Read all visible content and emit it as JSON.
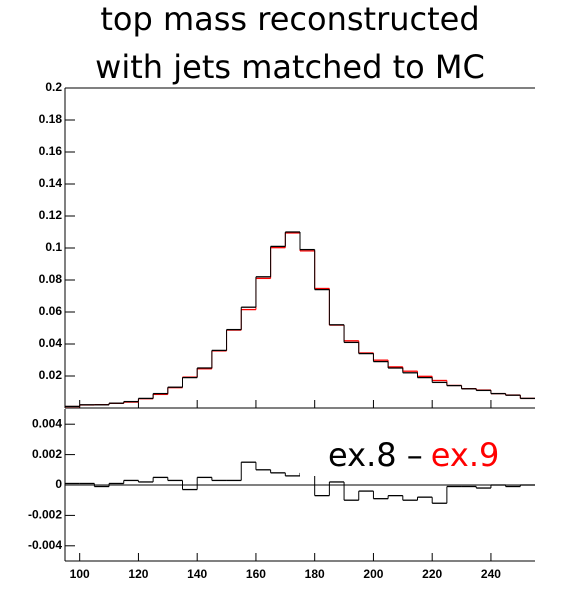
{
  "chart_data": [
    {
      "type": "histogram",
      "title": "top mass reconstructed",
      "subtitle": "with jets matched to MC",
      "bins": [
        95,
        100,
        105,
        110,
        115,
        120,
        125,
        130,
        135,
        140,
        145,
        150,
        155,
        160,
        165,
        170,
        175,
        180,
        185,
        190,
        195,
        200,
        205,
        210,
        215,
        220,
        225,
        230,
        235,
        240,
        245,
        250,
        255
      ],
      "series": [
        {
          "color": "#000000",
          "values": [
            0.001,
            0.002,
            0.002,
            0.003,
            0.004,
            0.006,
            0.009,
            0.013,
            0.019,
            0.025,
            0.036,
            0.049,
            0.063,
            0.082,
            0.101,
            0.11,
            0.099,
            0.074,
            0.052,
            0.041,
            0.034,
            0.029,
            0.025,
            0.022,
            0.019,
            0.016,
            0.014,
            0.012,
            0.011,
            0.009,
            0.008,
            0.006
          ]
        },
        {
          "color": "#ff0000",
          "values": [
            0.0009,
            0.0019,
            0.0021,
            0.0029,
            0.0037,
            0.0058,
            0.0085,
            0.0127,
            0.0193,
            0.0245,
            0.0357,
            0.0487,
            0.0615,
            0.081,
            0.1002,
            0.1094,
            0.0982,
            0.0747,
            0.0518,
            0.042,
            0.0344,
            0.0299,
            0.0257,
            0.023,
            0.0198,
            0.0172,
            0.0141,
            0.0121,
            0.0112,
            0.009,
            0.0081,
            0.006
          ]
        }
      ],
      "xlim": [
        95,
        255
      ],
      "xticks": [
        100,
        120,
        140,
        160,
        180,
        200,
        220,
        240
      ],
      "ylim": [
        0,
        0.2
      ],
      "yticks": [
        0.02,
        0.04,
        0.06,
        0.08,
        0.1,
        0.12,
        0.14,
        0.16,
        0.18,
        0.2
      ]
    },
    {
      "type": "histogram",
      "annotation": [
        "ex.8 –",
        "ex.9"
      ],
      "bins": [
        95,
        100,
        105,
        110,
        115,
        120,
        125,
        130,
        135,
        140,
        145,
        150,
        155,
        160,
        165,
        170,
        175,
        180,
        185,
        190,
        195,
        200,
        205,
        210,
        215,
        220,
        225,
        230,
        235,
        240,
        245,
        250,
        255
      ],
      "series": [
        {
          "color": "#000000",
          "values": [
            0.0001,
            0.0001,
            -0.0001,
            0.0001,
            0.0003,
            0.0002,
            0.0005,
            0.0003,
            -0.0003,
            0.0005,
            0.0003,
            0.0003,
            0.0015,
            0.001,
            0.0008,
            0.0006,
            0.0008,
            -0.0007,
            0.0002,
            -0.001,
            -0.0004,
            -0.0009,
            -0.0007,
            -0.001,
            -0.0008,
            -0.0012,
            -0.0001,
            -0.0001,
            -0.0002,
            0,
            -0.0001,
            0
          ]
        }
      ],
      "xlim": [
        95,
        255
      ],
      "xticks": [
        100,
        120,
        140,
        160,
        180,
        200,
        220,
        240
      ],
      "ylim": [
        -0.005,
        0.005
      ],
      "yticks": [
        0.004,
        0.002,
        0,
        -0.002,
        -0.004
      ]
    }
  ]
}
